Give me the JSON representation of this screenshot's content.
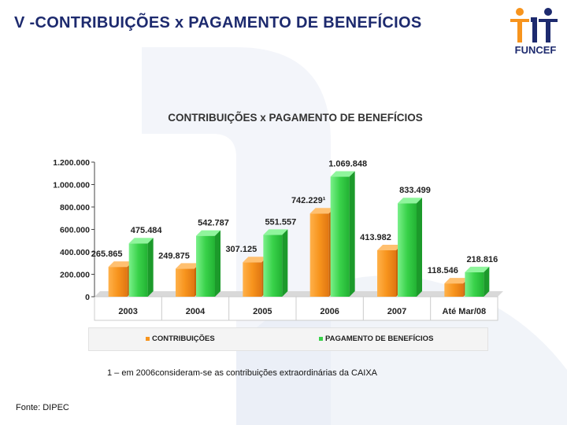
{
  "slide": {
    "title": "V -CONTRIBUIÇÕES x PAGAMENTO DE BENEFÍCIOS",
    "logo_text": "FUNCEF",
    "footnote": "1 – em 2006consideram-se as contribuições extraordinárias da CAIXA",
    "source": "Fonte: DIPEC"
  },
  "colors": {
    "contrib": "#f7941d",
    "contrib_dark": "#d86b0c",
    "benef": "#39d24a",
    "benef_dark": "#1fa52f",
    "title": "#1d2a6e",
    "logo_orange": "#f7941d"
  },
  "chart_data": {
    "type": "bar",
    "title": "CONTRIBUIÇÕES x PAGAMENTO DE BENEFÍCIOS",
    "categories": [
      "2003",
      "2004",
      "2005",
      "2006",
      "2007",
      "Até Mar/08"
    ],
    "series": [
      {
        "name": "CONTRIBUIÇÕES",
        "values": [
          265865,
          249875,
          307125,
          742229,
          413982,
          118546
        ],
        "labels": [
          "265.865",
          "249.875",
          "307.125",
          "742.229¹",
          "413.982",
          "118.546"
        ]
      },
      {
        "name": "PAGAMENTO DE BENEFÍCIOS",
        "values": [
          475484,
          542787,
          551557,
          1069848,
          833499,
          218816
        ],
        "labels": [
          "475.484",
          "542.787",
          "551.557",
          "1.069.848",
          "833.499",
          "218.816"
        ]
      }
    ],
    "yticks": [
      0,
      200000,
      400000,
      600000,
      800000,
      1000000,
      1200000
    ],
    "ytick_labels": [
      "0",
      "200.000",
      "400.000",
      "600.000",
      "800.000",
      "1.000.000",
      "1.200.000"
    ],
    "ylim": [
      0,
      1200000
    ],
    "legend": "bottom"
  }
}
